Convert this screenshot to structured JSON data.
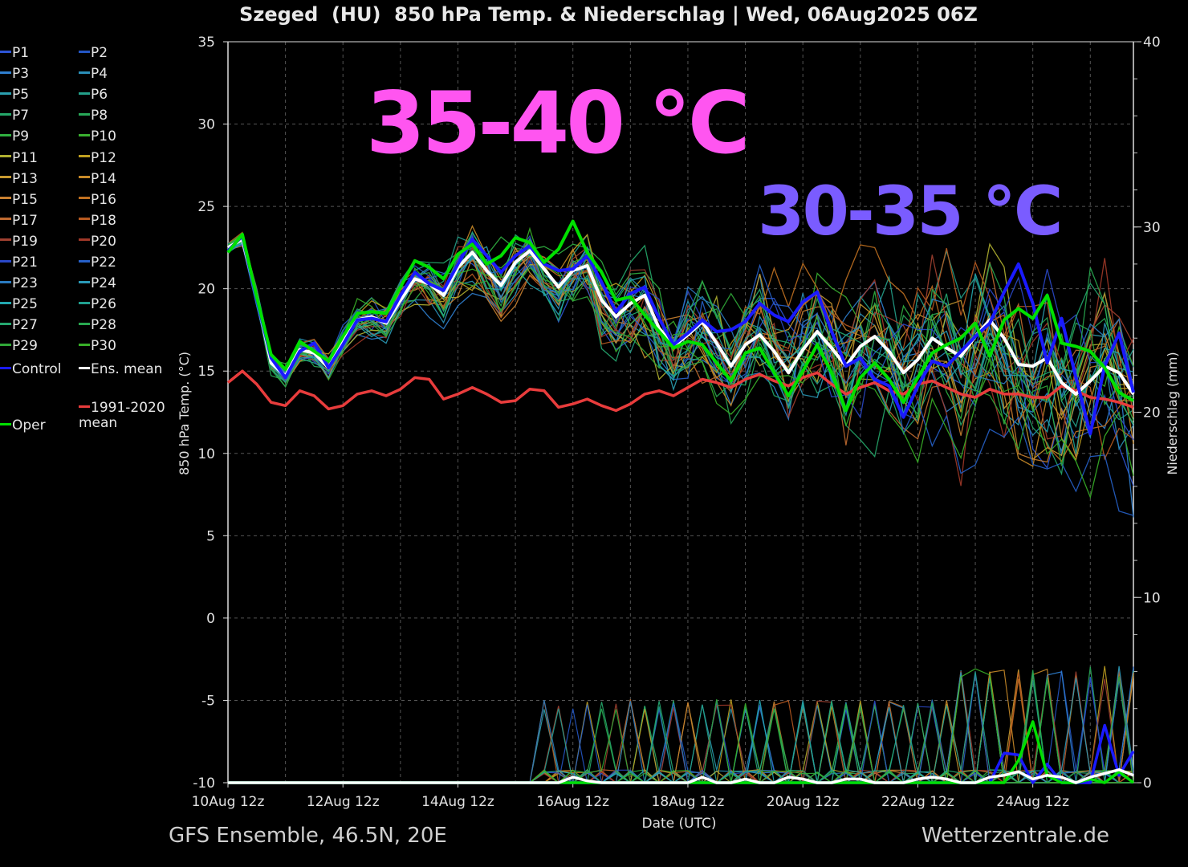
{
  "header": {
    "title": "Szeged  (HU)  850 hPa Temp. & Niederschlag | Wed, 06Aug2025 06Z"
  },
  "footer": {
    "model": "GFS Ensemble, 46.5N, 20E",
    "source": "Wetterzentrale.de"
  },
  "overlays": {
    "hot": "35-40 °C",
    "warm": "30-35 °C"
  },
  "legend": {
    "items": [
      {
        "label": "P1",
        "color": "#2d55d6"
      },
      {
        "label": "P2",
        "color": "#2456c4"
      },
      {
        "label": "P3",
        "color": "#2f7fd0"
      },
      {
        "label": "P4",
        "color": "#2a8fb8"
      },
      {
        "label": "P5",
        "color": "#2aa0b0"
      },
      {
        "label": "P6",
        "color": "#23a08a"
      },
      {
        "label": "P7",
        "color": "#25a86a"
      },
      {
        "label": "P8",
        "color": "#28a858"
      },
      {
        "label": "P9",
        "color": "#30b040"
      },
      {
        "label": "P10",
        "color": "#3ab030"
      },
      {
        "label": "P11",
        "color": "#b0b030"
      },
      {
        "label": "P12",
        "color": "#c0a020"
      },
      {
        "label": "P13",
        "color": "#c89a30"
      },
      {
        "label": "P14",
        "color": "#c88a28"
      },
      {
        "label": "P15",
        "color": "#c88030"
      },
      {
        "label": "P16",
        "color": "#c07020"
      },
      {
        "label": "P17",
        "color": "#c06a30"
      },
      {
        "label": "P18",
        "color": "#b85a20"
      },
      {
        "label": "P19",
        "color": "#a04030"
      },
      {
        "label": "P20",
        "color": "#a03828"
      },
      {
        "label": "P21",
        "color": "#2a48c8"
      },
      {
        "label": "P22",
        "color": "#2660c8"
      },
      {
        "label": "P23",
        "color": "#2a7ac0"
      },
      {
        "label": "P24",
        "color": "#2a9ab8"
      },
      {
        "label": "P25",
        "color": "#22a8b0"
      },
      {
        "label": "P26",
        "color": "#20a090"
      },
      {
        "label": "P27",
        "color": "#25a870"
      },
      {
        "label": "P28",
        "color": "#28a850"
      },
      {
        "label": "P29",
        "color": "#30a838"
      },
      {
        "label": "P30",
        "color": "#38b028"
      }
    ],
    "control": {
      "label": "Control",
      "color": "#1a1aff"
    },
    "ens_mean": {
      "label": "Ens. mean",
      "color": "#ffffff"
    },
    "climate": {
      "label": "1991-2020\nmean",
      "color": "#e83c3c"
    },
    "oper": {
      "label": "Oper",
      "color": "#00e000"
    }
  },
  "chart_data": {
    "type": "line",
    "xlabel": "Date (UTC)",
    "ylabel": "850 hPa Temp. (°C)",
    "y2label": "Niederschlag (mm)",
    "ylim": [
      -10,
      35
    ],
    "y2lim": [
      0,
      40
    ],
    "yticks": [
      "35",
      "30",
      "25",
      "20",
      "15",
      "10",
      "5",
      "0",
      "-5",
      "-10"
    ],
    "y2ticks": [
      "40",
      "30",
      "20",
      "10",
      "0"
    ],
    "xticks": [
      "10Aug 12z",
      "12Aug 12z",
      "14Aug 12z",
      "16Aug 12z",
      "18Aug 12z",
      "20Aug 12z",
      "22Aug 12z",
      "24Aug 12z"
    ],
    "xlim_steps": [
      0,
      63
    ],
    "grid": true,
    "step_hours": 6,
    "series": [
      {
        "name": "Ens. mean",
        "color": "#ffffff",
        "values": [
          22.5,
          23,
          19.5,
          15.5,
          14.7,
          16.3,
          16.1,
          15.2,
          16.8,
          18.1,
          18.3,
          17.9,
          19.3,
          20.6,
          20.3,
          19.6,
          21.3,
          22.2,
          21.1,
          20.2,
          21.6,
          22.3,
          21.2,
          20.1,
          21.1,
          21.4,
          19.3,
          18.3,
          19.1,
          19.6,
          17.6,
          16.5,
          17.2,
          18.0,
          16.7,
          15.3,
          16.6,
          17.2,
          16.2,
          14.9,
          16.3,
          17.4,
          16.4,
          15.3,
          16.5,
          17.1,
          16.2,
          14.9,
          15.7,
          17.0,
          16.4,
          15.9,
          17.1,
          18.1,
          17.0,
          15.4,
          15.3,
          15.8,
          14.3,
          13.6,
          14.4,
          15.3,
          14.9,
          13.6
        ]
      },
      {
        "name": "Control",
        "color": "#1a1aff",
        "values": [
          22.3,
          23.2,
          19.4,
          15.8,
          14.6,
          16.2,
          16.7,
          15.2,
          16.6,
          18.1,
          18.2,
          18.0,
          19.6,
          21.0,
          20.3,
          19.9,
          21.5,
          23.0,
          22.0,
          21.0,
          22.0,
          22.6,
          21.5,
          21.1,
          21.2,
          22.0,
          20.4,
          18.6,
          19.7,
          20.1,
          18.2,
          16.6,
          17.3,
          18.1,
          17.4,
          17.5,
          18.0,
          19.1,
          18.4,
          18.0,
          19.2,
          19.8,
          17.4,
          15.3,
          15.8,
          14.5,
          14.1,
          12.2,
          14.1,
          15.6,
          15.3,
          16.2,
          17.1,
          17.9,
          19.8,
          21.5,
          19.1,
          15.5,
          18.2,
          14.6,
          11.2,
          15.3,
          17.3,
          13.7
        ]
      },
      {
        "name": "Oper",
        "color": "#00e000",
        "values": [
          22.2,
          23.3,
          19.5,
          16.0,
          15.1,
          16.8,
          16.2,
          15.6,
          17.1,
          18.5,
          18.6,
          18.5,
          20.1,
          21.7,
          21.3,
          20.6,
          22.1,
          22.7,
          21.5,
          22.0,
          23.1,
          22.8,
          21.6,
          22.4,
          24.1,
          22.2,
          21.0,
          19.3,
          19.5,
          18.4,
          17.4,
          16.4,
          16.8,
          16.6,
          15.5,
          14.4,
          16.1,
          16.4,
          14.9,
          13.5,
          15.0,
          16.6,
          14.9,
          12.6,
          14.6,
          15.5,
          14.5,
          13.1,
          14.6,
          16.1,
          16.6,
          17.0,
          17.9,
          15.9,
          18.1,
          18.8,
          18.2,
          19.6,
          16.7,
          16.5,
          16.2,
          15.2,
          13.7,
          13.2
        ]
      },
      {
        "name": "1991-2020 mean",
        "color": "#e83c3c",
        "values": [
          14.3,
          15.0,
          14.2,
          13.1,
          12.9,
          13.8,
          13.5,
          12.7,
          12.9,
          13.6,
          13.8,
          13.5,
          13.9,
          14.6,
          14.5,
          13.3,
          13.6,
          14.0,
          13.6,
          13.1,
          13.2,
          13.9,
          13.8,
          12.8,
          13.0,
          13.3,
          12.9,
          12.6,
          13.0,
          13.6,
          13.8,
          13.5,
          14.0,
          14.5,
          14.3,
          14.0,
          14.5,
          14.8,
          14.4,
          14.1,
          14.6,
          14.9,
          14.2,
          13.6,
          14.0,
          14.3,
          13.8,
          13.6,
          14.2,
          14.4,
          14.0,
          13.6,
          13.4,
          13.9,
          13.6,
          13.6,
          13.4,
          13.4,
          14.1,
          13.8,
          13.4,
          13.3,
          13.1,
          12.8
        ]
      }
    ],
    "precip_series": [
      {
        "name": "Control",
        "color": "#1a1aff",
        "values": [
          0,
          0,
          0,
          0,
          0,
          0,
          0,
          0,
          0,
          0,
          0,
          0,
          0,
          0,
          0,
          0,
          0,
          0,
          0,
          0,
          0,
          0,
          0,
          0,
          0,
          0,
          0,
          0,
          0,
          0,
          0,
          0,
          0,
          0,
          0,
          0,
          0,
          0,
          0,
          0,
          0,
          0,
          0,
          0,
          0,
          0,
          0,
          0,
          0,
          0,
          0,
          0,
          0,
          0,
          1.6,
          1.5,
          0,
          1.0,
          0,
          0,
          0,
          3.1,
          0.4,
          1.7
        ]
      },
      {
        "name": "Oper",
        "color": "#00e000",
        "values": [
          0,
          0,
          0,
          0,
          0,
          0,
          0,
          0,
          0,
          0,
          0,
          0,
          0,
          0,
          0,
          0,
          0,
          0,
          0,
          0,
          0,
          0,
          0,
          0,
          0,
          0,
          0,
          0,
          0,
          0,
          0,
          0,
          0,
          0,
          0,
          0,
          0,
          0,
          0,
          0,
          0,
          0,
          0,
          0,
          0,
          0,
          0,
          0,
          0,
          0,
          0,
          0,
          0,
          0,
          0,
          1.2,
          3.3,
          0.4,
          0,
          0,
          0.2,
          0,
          0.6,
          0
        ]
      },
      {
        "name": "Ens. mean",
        "color": "#ffffff",
        "values": [
          0,
          0,
          0,
          0,
          0,
          0,
          0,
          0,
          0,
          0,
          0,
          0,
          0,
          0,
          0,
          0,
          0,
          0,
          0,
          0,
          0,
          0,
          0,
          0,
          0.3,
          0.1,
          0,
          0,
          0,
          0,
          0,
          0,
          0,
          0.3,
          0,
          0,
          0.2,
          0,
          0,
          0.3,
          0.2,
          0,
          0,
          0.2,
          0.2,
          0,
          0,
          0,
          0.2,
          0.3,
          0.2,
          0,
          0,
          0.3,
          0.4,
          0.6,
          0.2,
          0.4,
          0.3,
          0,
          0.3,
          0.5,
          0.7,
          0.4
        ]
      }
    ]
  }
}
